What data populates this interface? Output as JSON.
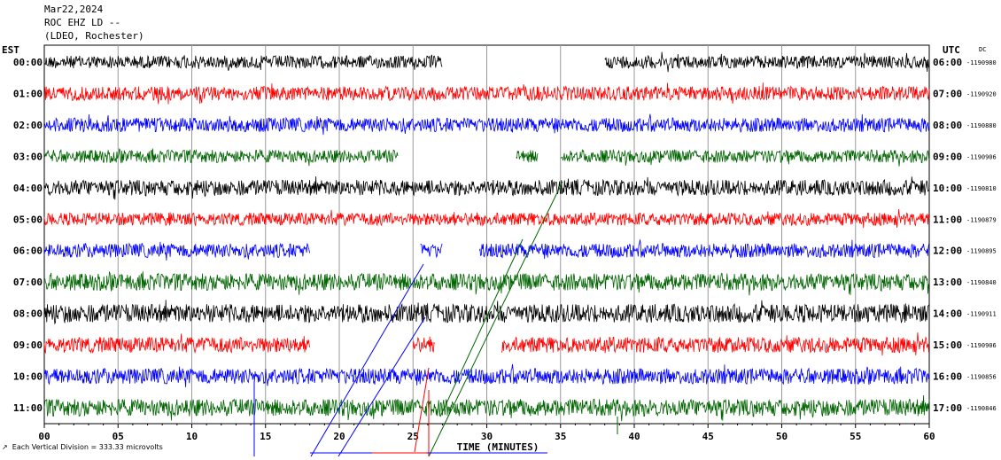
{
  "header": {
    "date": "Mar22,2024",
    "station": "ROC EHZ LD --",
    "network": "(LDEO, Rochester)"
  },
  "footer": {
    "note": "Each Vertical Division = 333.33 microvolts",
    "note_prefix": "↗"
  },
  "chart_data": {
    "type": "line",
    "title": "",
    "xlabel": "TIME (MINUTES)",
    "ylabel_left": "EST",
    "ylabel_right": "UTC",
    "dc_label": "DC",
    "xlim": [
      0,
      60
    ],
    "x_ticks": [
      0,
      5,
      10,
      15,
      20,
      25,
      30,
      35,
      40,
      45,
      50,
      55,
      60
    ],
    "x_tick_labels": [
      "00",
      "05",
      "10",
      "15",
      "20",
      "25",
      "30",
      "35",
      "40",
      "45",
      "50",
      "55",
      "60"
    ],
    "grid": true,
    "colors": [
      "#000000",
      "#ff0000",
      "#0000ff",
      "#006400"
    ],
    "series": [
      {
        "est": "00:00",
        "utc": "06:00",
        "dc": "-1190980",
        "color": "#000000",
        "amp": 0.45,
        "gaps": [
          [
            27,
            38
          ]
        ]
      },
      {
        "est": "01:00",
        "utc": "07:00",
        "dc": "-1190920",
        "color": "#ff0000",
        "amp": 0.5,
        "gaps": []
      },
      {
        "est": "02:00",
        "utc": "08:00",
        "dc": "-1190880",
        "color": "#0000ff",
        "amp": 0.5,
        "gaps": []
      },
      {
        "est": "03:00",
        "utc": "09:00",
        "dc": "-1190906",
        "color": "#006400",
        "amp": 0.45,
        "gaps": [
          [
            24,
            32
          ],
          [
            33.5,
            35
          ]
        ]
      },
      {
        "est": "04:00",
        "utc": "10:00",
        "dc": "-1190810",
        "color": "#000000",
        "amp": 0.55,
        "gaps": []
      },
      {
        "est": "05:00",
        "utc": "11:00",
        "dc": "-1190879",
        "color": "#ff0000",
        "amp": 0.45,
        "gaps": []
      },
      {
        "est": "06:00",
        "utc": "12:00",
        "dc": "-1190895",
        "color": "#0000ff",
        "amp": 0.5,
        "gaps": [
          [
            18,
            25.5
          ],
          [
            27,
            29.5
          ]
        ]
      },
      {
        "est": "07:00",
        "utc": "13:00",
        "dc": "-1190840",
        "color": "#006400",
        "amp": 0.6,
        "gaps": []
      },
      {
        "est": "08:00",
        "utc": "14:00",
        "dc": "-1190911",
        "color": "#000000",
        "amp": 0.65,
        "gaps": []
      },
      {
        "est": "09:00",
        "utc": "15:00",
        "dc": "-1190906",
        "color": "#ff0000",
        "amp": 0.55,
        "gaps": [
          [
            18,
            25
          ],
          [
            26.5,
            31
          ]
        ]
      },
      {
        "est": "10:00",
        "utc": "16:00",
        "dc": "-1190856",
        "color": "#0000ff",
        "amp": 0.55,
        "gaps": []
      },
      {
        "est": "11:00",
        "utc": "17:00",
        "dc": "-1190846",
        "color": "#006400",
        "amp": 0.6,
        "gaps": []
      }
    ]
  }
}
